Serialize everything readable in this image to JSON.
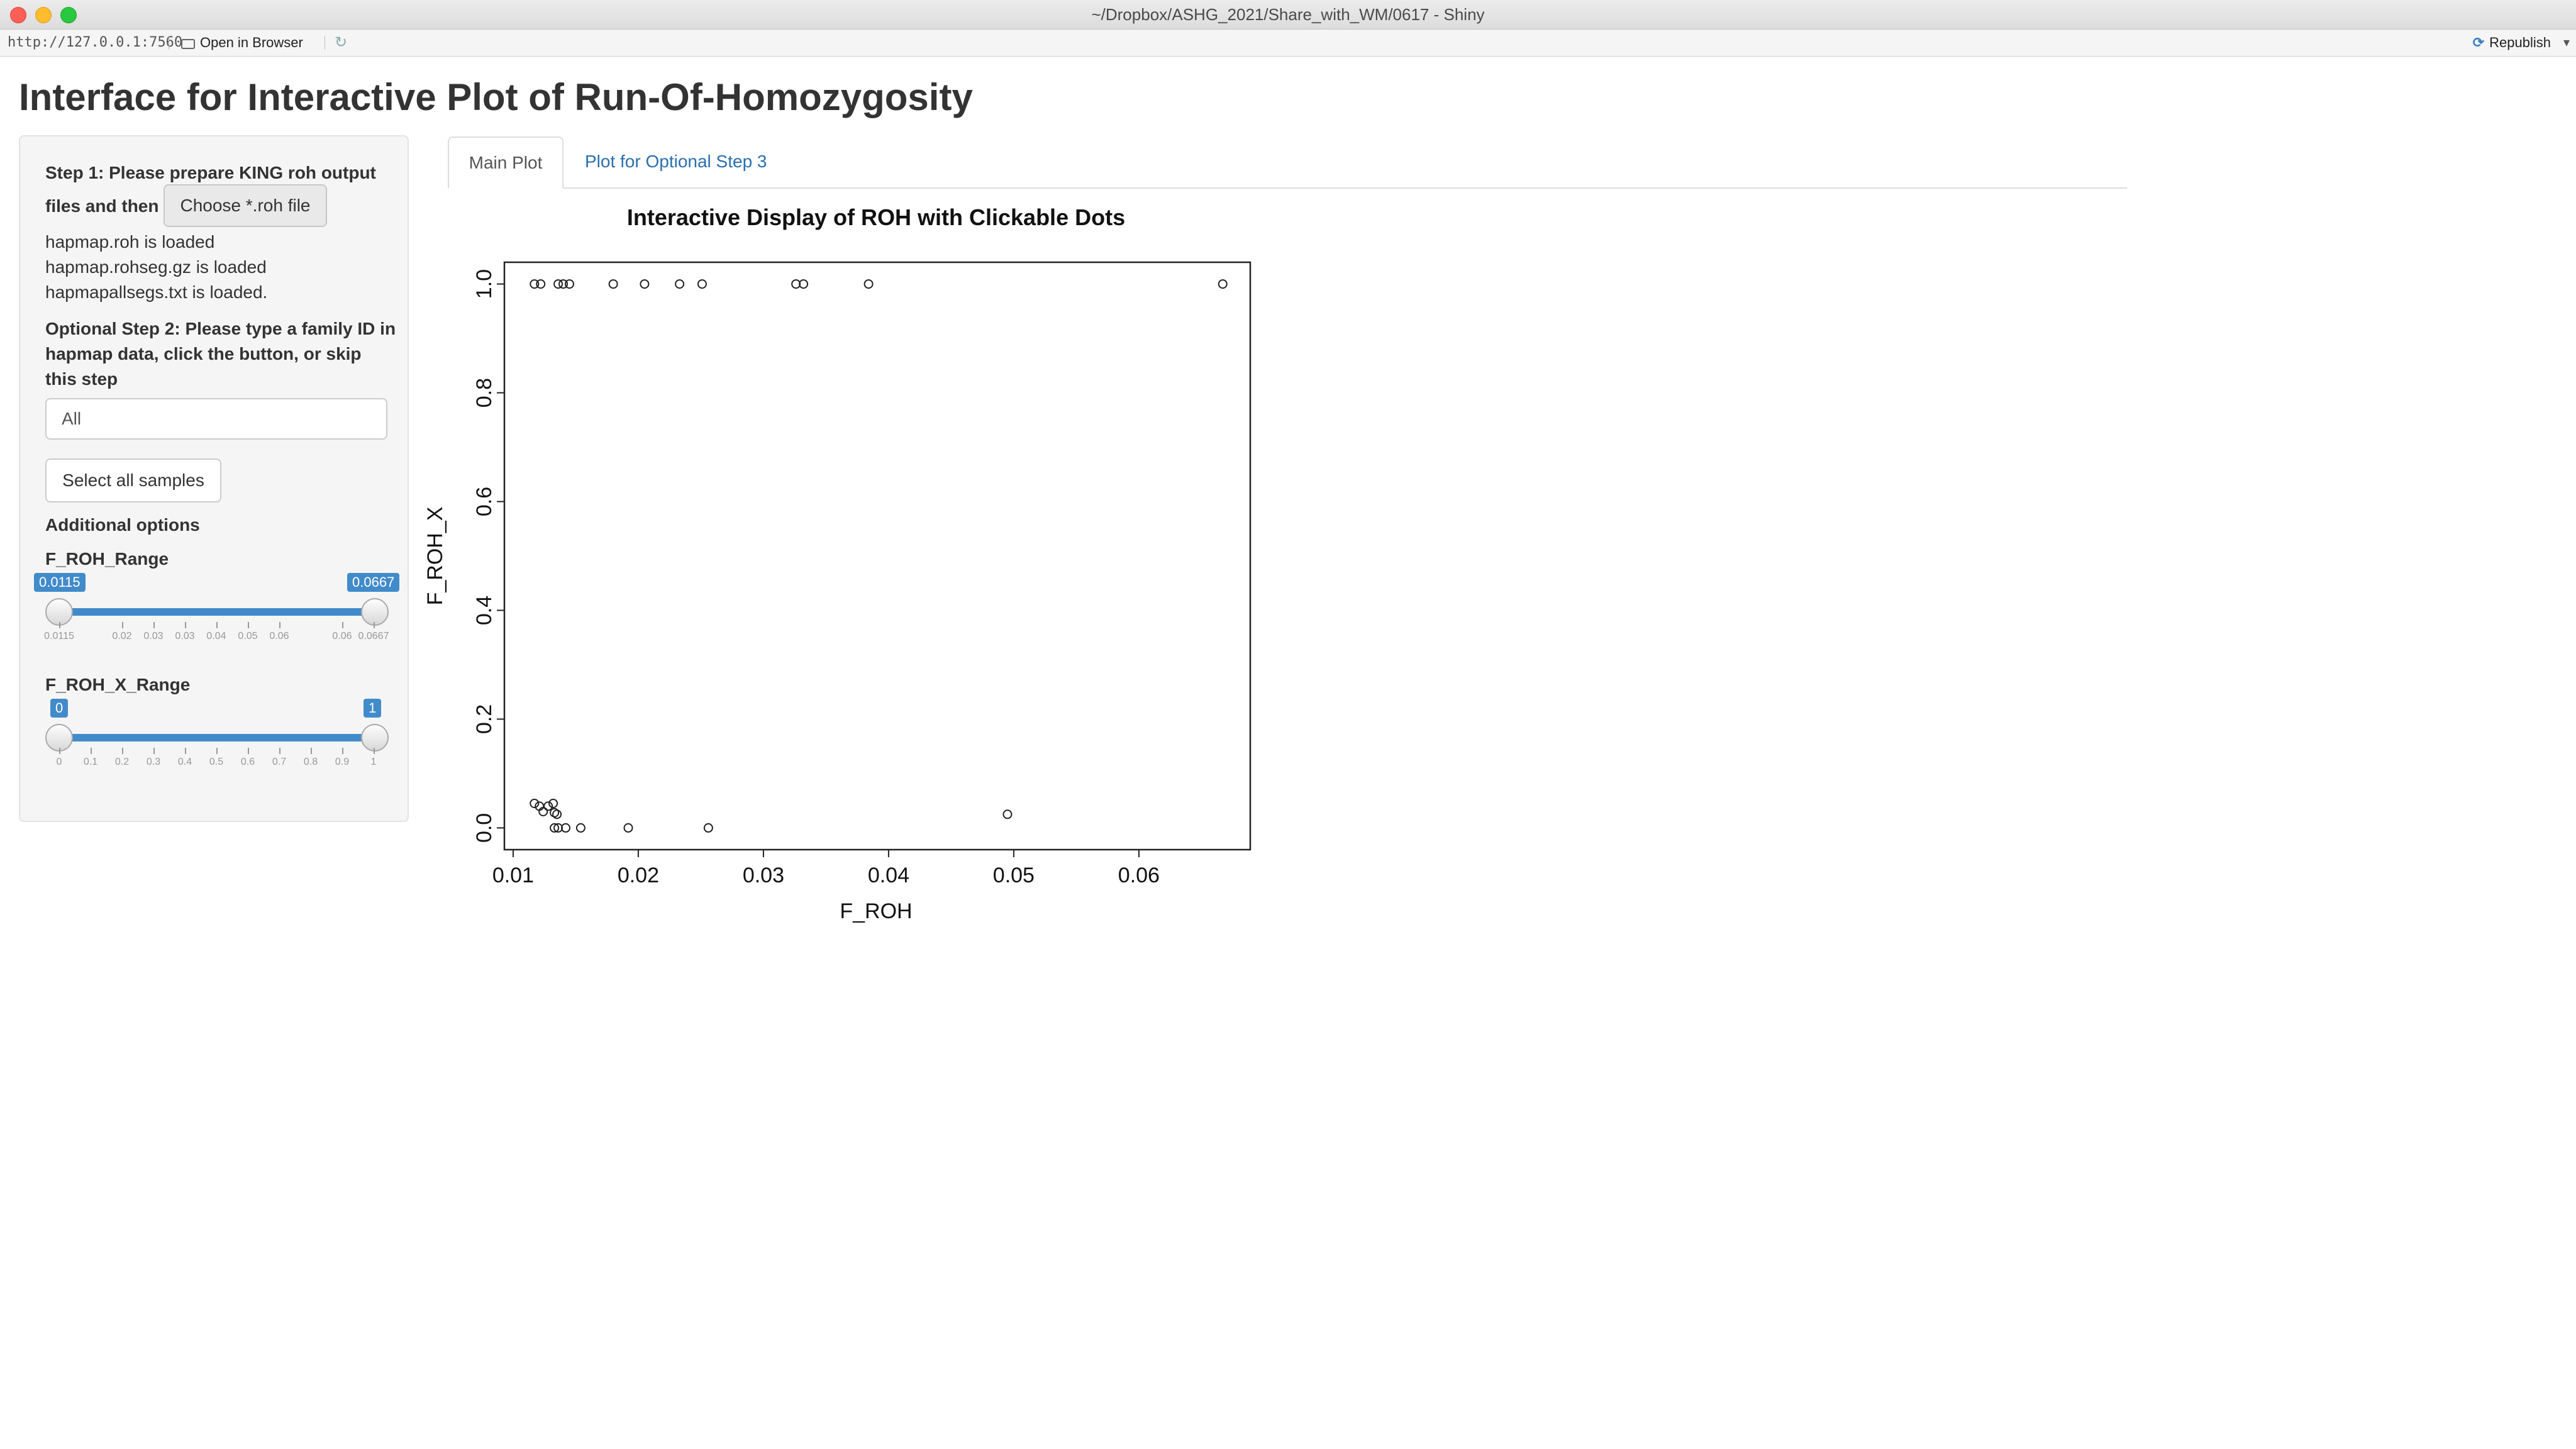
{
  "window": {
    "title": "~/Dropbox/ASHG_2021/Share_with_WM/0617 - Shiny"
  },
  "toolbar": {
    "url": "http://127.0.0.1:7560",
    "open_in_browser": "Open in Browser",
    "republish": "Republish"
  },
  "app": {
    "title": "Interface for Interactive Plot of Run-Of-Homozygosity"
  },
  "sidebar": {
    "step1_line1": "Step 1: Please prepare KING roh output",
    "step1_line2": "files and then",
    "choose_button": "Choose *.roh file",
    "loaded": [
      "hapmap.roh is loaded",
      "hapmap.rohseg.gz is loaded",
      "hapmapallsegs.txt is loaded."
    ],
    "step2": "Optional Step 2: Please type a family ID in hapmap data, click the button, or skip this step",
    "family_input_value": "All",
    "select_all_button": "Select all samples",
    "additional_options": "Additional options",
    "slider1": {
      "label": "F_ROH_Range",
      "min_label": "0.0115",
      "max_label": "0.0667",
      "range": [
        0.0115,
        0.0667
      ],
      "selected": [
        0.0115,
        0.0667
      ],
      "ticks": [
        "0.0115",
        "0.02",
        "0.03",
        "0.03",
        "0.04",
        "0.05",
        "0.06",
        "0.06",
        "0.0667"
      ]
    },
    "slider2": {
      "label": "F_ROH_X_Range",
      "min_label": "0",
      "max_label": "1",
      "range": [
        0,
        1
      ],
      "selected": [
        0,
        1
      ],
      "ticks": [
        "0",
        "0.1",
        "0.2",
        "0.3",
        "0.4",
        "0.5",
        "0.6",
        "0.7",
        "0.8",
        "0.9",
        "1"
      ]
    }
  },
  "tabs": {
    "main": "Main Plot",
    "optional": "Plot for Optional Step 3"
  },
  "chart_data": {
    "type": "scatter",
    "title": "Interactive Display of ROH with Clickable Dots",
    "xlabel": "F_ROH",
    "ylabel": "F_ROH_X",
    "xticks": [
      "0.01",
      "0.02",
      "0.03",
      "0.04",
      "0.05",
      "0.06"
    ],
    "yticks": [
      "0.0",
      "0.2",
      "0.4",
      "0.6",
      "0.8",
      "1.0"
    ],
    "xlim": [
      0.0093,
      0.0689
    ],
    "ylim": [
      -0.04,
      1.04
    ],
    "grid": false,
    "marker": "open-circle",
    "points": [
      {
        "x": 0.0117,
        "y": 1.0
      },
      {
        "x": 0.0122,
        "y": 1.0
      },
      {
        "x": 0.0136,
        "y": 1.0
      },
      {
        "x": 0.014,
        "y": 1.0
      },
      {
        "x": 0.0145,
        "y": 1.0
      },
      {
        "x": 0.018,
        "y": 1.0
      },
      {
        "x": 0.0205,
        "y": 1.0
      },
      {
        "x": 0.0233,
        "y": 1.0
      },
      {
        "x": 0.0251,
        "y": 1.0
      },
      {
        "x": 0.0326,
        "y": 1.0
      },
      {
        "x": 0.0332,
        "y": 1.0
      },
      {
        "x": 0.0384,
        "y": 1.0
      },
      {
        "x": 0.0667,
        "y": 1.0
      },
      {
        "x": 0.0117,
        "y": 0.045
      },
      {
        "x": 0.0121,
        "y": 0.04
      },
      {
        "x": 0.0124,
        "y": 0.03
      },
      {
        "x": 0.0128,
        "y": 0.04
      },
      {
        "x": 0.0132,
        "y": 0.045
      },
      {
        "x": 0.0133,
        "y": 0.028
      },
      {
        "x": 0.0135,
        "y": 0.025
      },
      {
        "x": 0.0133,
        "y": 0.0
      },
      {
        "x": 0.0136,
        "y": 0.0
      },
      {
        "x": 0.0142,
        "y": 0.0
      },
      {
        "x": 0.0154,
        "y": 0.0
      },
      {
        "x": 0.0192,
        "y": 0.0
      },
      {
        "x": 0.0256,
        "y": 0.0
      },
      {
        "x": 0.0495,
        "y": 0.025
      }
    ]
  }
}
